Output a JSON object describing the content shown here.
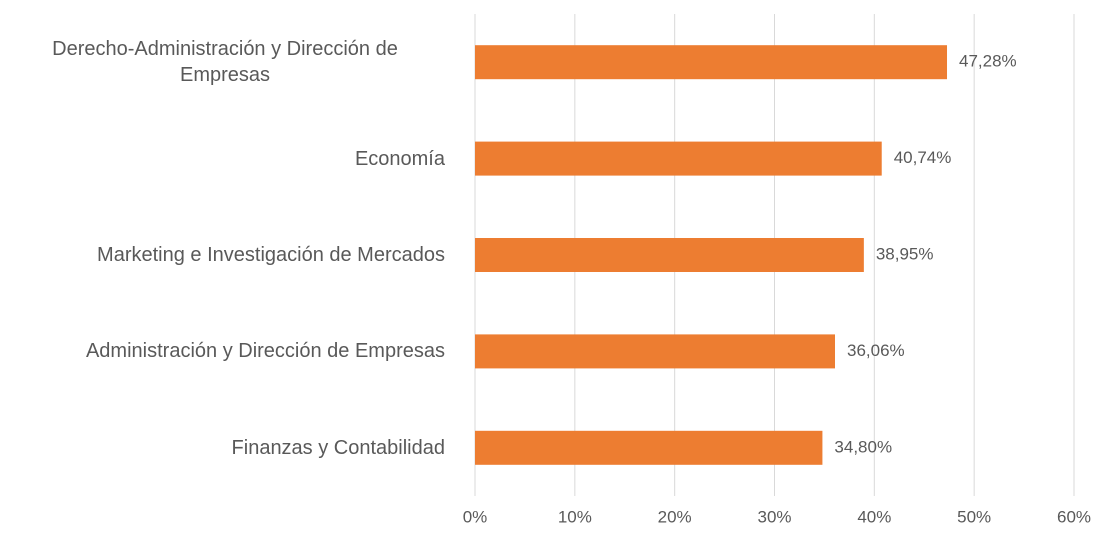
{
  "chart_data": {
    "type": "bar",
    "orientation": "horizontal",
    "categories": [
      "Derecho-Administración y Dirección de Empresas",
      "Economía",
      "Marketing e Investigación de Mercados",
      "Administración y Dirección de Empresas",
      "Finanzas y Contabilidad"
    ],
    "values": [
      47.28,
      40.74,
      38.95,
      36.06,
      34.8
    ],
    "value_labels": [
      "47,28%",
      "40,74%",
      "38,95%",
      "36,06%",
      "34,80%"
    ],
    "color": "#ed7d31",
    "xlim": [
      0,
      60
    ],
    "xticks": [
      {
        "value": 0,
        "label": "0%"
      },
      {
        "value": 10,
        "label": "10%"
      },
      {
        "value": 20,
        "label": "20%"
      },
      {
        "value": 30,
        "label": "30%"
      },
      {
        "value": 40,
        "label": "40%"
      },
      {
        "value": 50,
        "label": "50%"
      },
      {
        "value": 60,
        "label": "60%"
      }
    ],
    "grid": true
  }
}
